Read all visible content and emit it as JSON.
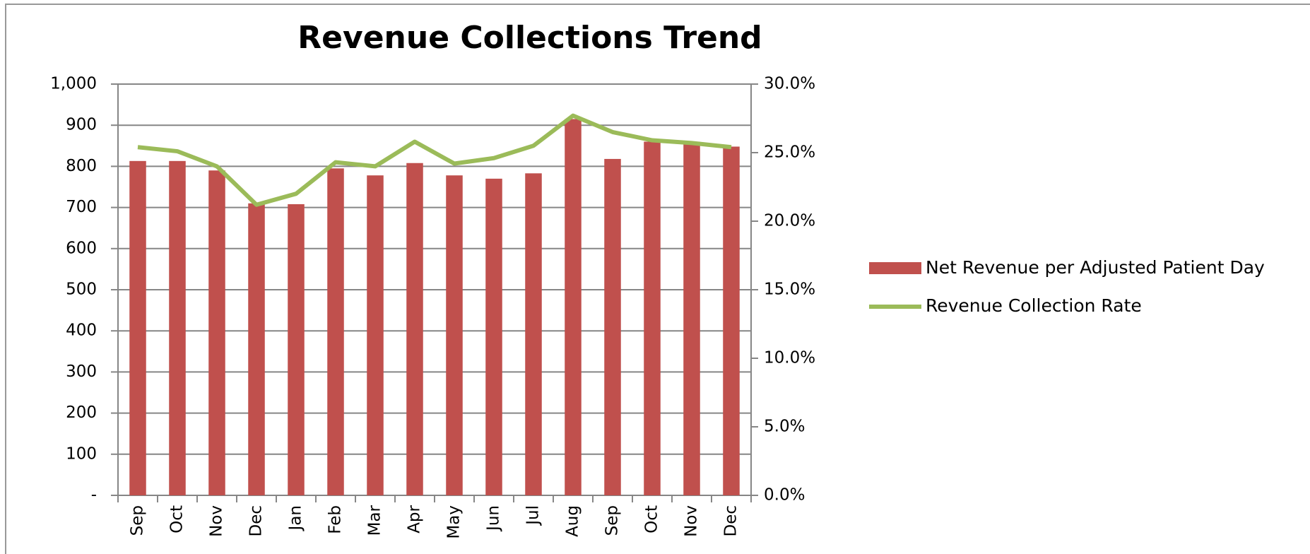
{
  "chart_data": {
    "type": "bar-line",
    "title": "Revenue Collections Trend",
    "categories": [
      "Sep",
      "Oct",
      "Nov",
      "Dec",
      "Jan",
      "Feb",
      "Mar",
      "Apr",
      "May",
      "Jun",
      "Jul",
      "Aug",
      "Sep",
      "Oct",
      "Nov",
      "Dec"
    ],
    "series": [
      {
        "name": "Net Revenue per Adjusted Patient Day",
        "color": "#c0504d",
        "type": "bar",
        "values": [
          813,
          813,
          790,
          710,
          708,
          795,
          778,
          808,
          778,
          770,
          783,
          915,
          818,
          860,
          860,
          848
        ]
      },
      {
        "name": "Revenue Collection Rate",
        "color": "#9bbb59",
        "type": "line",
        "axis": "y2",
        "values": [
          25.4,
          25.1,
          24.0,
          21.2,
          22.0,
          24.3,
          24.0,
          25.8,
          24.2,
          24.6,
          25.5,
          27.7,
          26.5,
          25.9,
          25.7,
          25.4
        ]
      }
    ],
    "ylim": [
      0,
      1000
    ],
    "yticks": [
      {
        "value": 0,
        "label": "-"
      },
      100,
      200,
      300,
      400,
      500,
      600,
      700,
      800,
      900,
      {
        "value": 1000,
        "label": "1,000"
      }
    ],
    "y2lim": [
      0,
      30
    ],
    "y2ticks": [
      {
        "value": 0,
        "label": "0.0%"
      },
      {
        "value": 5,
        "label": "5.0%"
      },
      {
        "value": 10,
        "label": "10.0%"
      },
      {
        "value": 15,
        "label": "15.0%"
      },
      {
        "value": 20,
        "label": "20.0%"
      },
      {
        "value": 25,
        "label": "25.0%"
      },
      {
        "value": 30,
        "label": "30.0%"
      }
    ],
    "grid": true,
    "legend": "right"
  }
}
